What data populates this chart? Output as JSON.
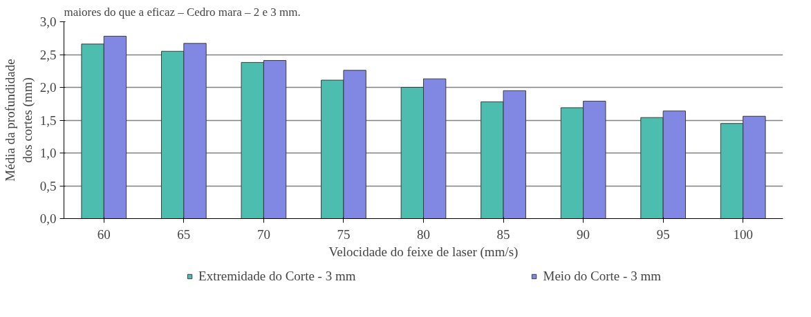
{
  "chart_data": {
    "type": "bar",
    "annotations": [
      "maiores do que a eficaz – Cedro mara – 2 e 3 mm."
    ],
    "xlabel": "Velocidade do feixe de laser (mm/s)",
    "ylabel": "Média da profundidade dos cortes (mm)",
    "categories": [
      "60",
      "65",
      "70",
      "75",
      "80",
      "85",
      "90",
      "95",
      "100"
    ],
    "series": [
      {
        "name": "Extremidade do Corte - 3 mm",
        "color": "#4dbdb0",
        "values": [
          2.66,
          2.55,
          2.38,
          2.11,
          2.0,
          1.78,
          1.69,
          1.54,
          1.45
        ]
      },
      {
        "name": "Meio do Corte - 3 mm",
        "color": "#8088e4",
        "values": [
          2.78,
          2.67,
          2.41,
          2.26,
          2.13,
          1.95,
          1.79,
          1.64,
          1.56
        ]
      }
    ],
    "ylim": [
      0,
      3.0
    ],
    "yticks": [
      {
        "value": 0,
        "label": "0,0"
      },
      {
        "value": 0.5,
        "label": "0,5"
      },
      {
        "value": 1.0,
        "label": "1,0"
      },
      {
        "value": 1.5,
        "label": "1,5"
      },
      {
        "value": 2.0,
        "label": "2,0"
      },
      {
        "value": 2.5,
        "label": "2,5"
      },
      {
        "value": 3.0,
        "label": "3,0"
      }
    ],
    "grid": "y",
    "legend": "bottom"
  }
}
